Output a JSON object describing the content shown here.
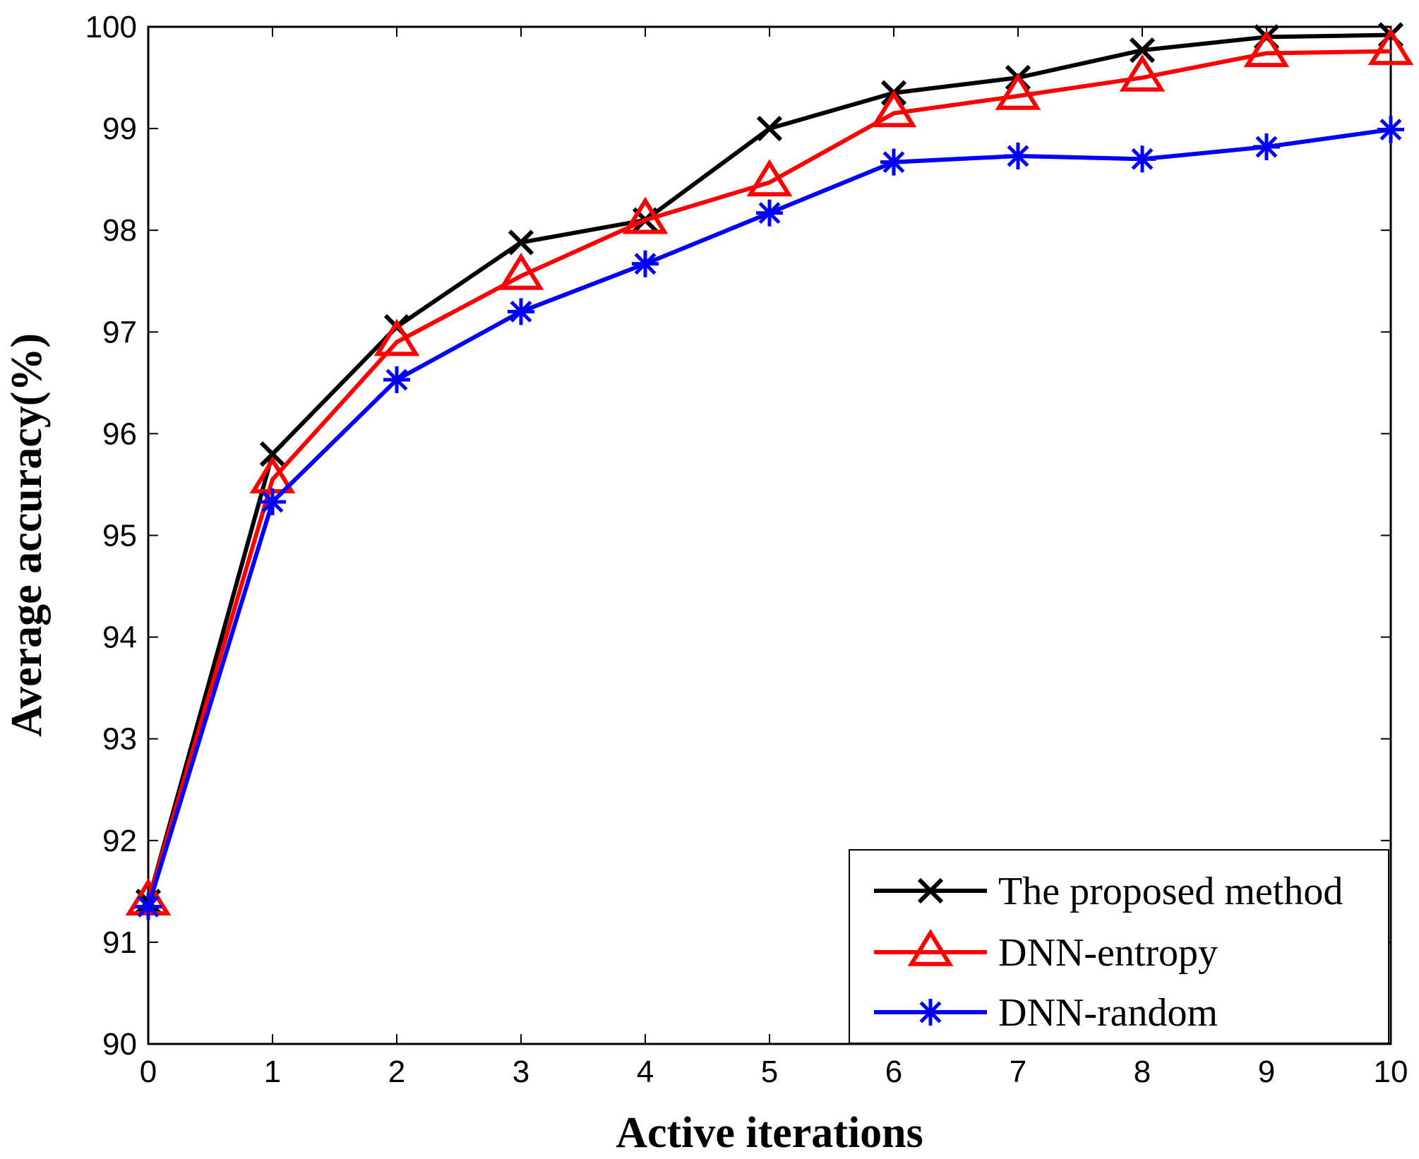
{
  "chart_data": {
    "type": "line",
    "title": "",
    "xlabel": "Active iterations",
    "ylabel": "Average accuracy(%)",
    "x": [
      0,
      1,
      2,
      3,
      4,
      5,
      6,
      7,
      8,
      9,
      10
    ],
    "xlim": [
      0,
      10
    ],
    "ylim": [
      90,
      100
    ],
    "xticks": [
      "0",
      "1",
      "2",
      "3",
      "4",
      "5",
      "6",
      "7",
      "8",
      "9",
      "10"
    ],
    "yticks": [
      "90",
      "91",
      "92",
      "93",
      "94",
      "95",
      "96",
      "97",
      "98",
      "99",
      "100"
    ],
    "grid": false,
    "legend_position": "bottom-right",
    "series": [
      {
        "name": "The proposed method",
        "color": "#000000",
        "marker": "x-icon",
        "values": [
          91.4,
          95.8,
          97.05,
          97.88,
          98.1,
          99.0,
          99.35,
          99.5,
          99.77,
          99.9,
          99.92
        ]
      },
      {
        "name": "DNN-entropy",
        "color": "#ff0000",
        "marker": "triangle-icon",
        "values": [
          91.4,
          95.55,
          96.9,
          97.55,
          98.1,
          98.47,
          99.15,
          99.32,
          99.5,
          99.74,
          99.76
        ]
      },
      {
        "name": "DNN-random",
        "color": "#0000ff",
        "marker": "asterisk-icon",
        "values": [
          91.35,
          95.33,
          96.53,
          97.2,
          97.67,
          98.17,
          98.67,
          98.73,
          98.7,
          98.82,
          98.99
        ]
      }
    ]
  }
}
